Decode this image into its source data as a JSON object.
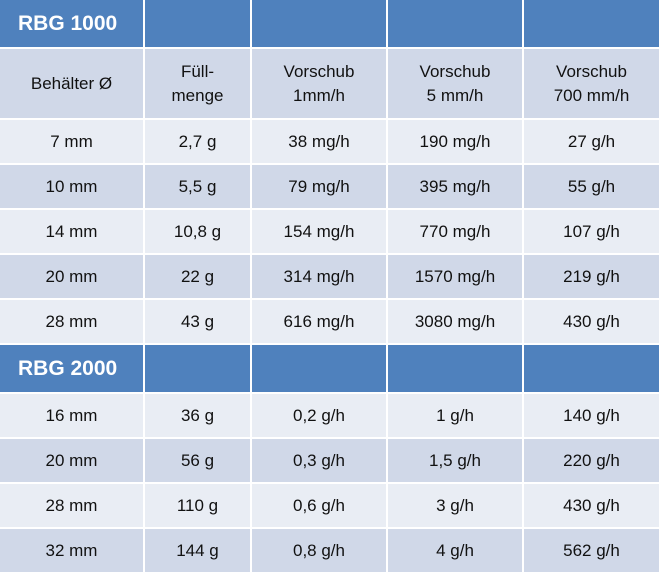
{
  "sections": [
    {
      "title": "RBG 1000",
      "header": [
        [
          "Behälter  Ø"
        ],
        [
          "Füll-",
          "menge"
        ],
        [
          "Vorschub",
          "1mm/h"
        ],
        [
          "Vorschub",
          "5 mm/h"
        ],
        [
          "Vorschub",
          "700 mm/h"
        ]
      ],
      "rows": [
        [
          "7 mm",
          "2,7 g",
          "38 mg/h",
          "190 mg/h",
          "27 g/h"
        ],
        [
          "10 mm",
          "5,5 g",
          "79 mg/h",
          "395 mg/h",
          "55 g/h"
        ],
        [
          "14 mm",
          "10,8 g",
          "154 mg/h",
          "770 mg/h",
          "107 g/h"
        ],
        [
          "20 mm",
          "22 g",
          "314 mg/h",
          "1570 mg/h",
          "219 g/h"
        ],
        [
          "28 mm",
          "43 g",
          "616 mg/h",
          "3080 mg/h",
          "430 g/h"
        ]
      ]
    },
    {
      "title": "RBG 2000",
      "rows": [
        [
          "16 mm",
          "36 g",
          "0,2 g/h",
          "1 g/h",
          "140 g/h"
        ],
        [
          "20 mm",
          "56 g",
          "0,3 g/h",
          "1,5 g/h",
          "220 g/h"
        ],
        [
          "28 mm",
          "110 g",
          "0,6 g/h",
          "3 g/h",
          "430 g/h"
        ],
        [
          "32 mm",
          "144 g",
          "0,8 g/h",
          "4 g/h",
          "562 g/h"
        ]
      ]
    }
  ]
}
